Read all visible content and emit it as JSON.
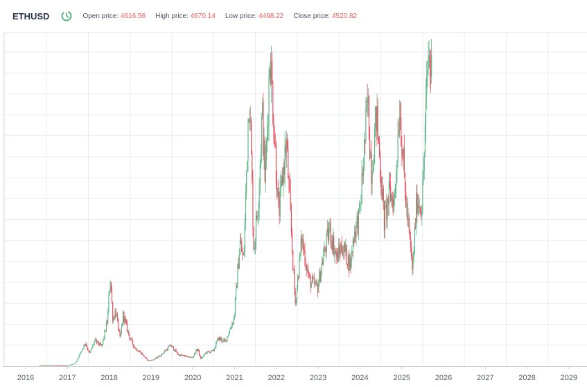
{
  "header": {
    "symbol": "ETHUSD",
    "open_label": "Open price:",
    "open_value": "4616.56",
    "high_label": "High price:",
    "high_value": "4670.14",
    "low_label": "Low price:",
    "low_value": "4498.22",
    "close_label": "Close price:",
    "close_value": "4520.82",
    "clock_icon": "clock-icon"
  },
  "colors": {
    "up": "#5fb88a",
    "down": "#e5505e",
    "grid": "#e8ebf0",
    "clock": "#4cae76",
    "value_text": "#ef5b5b"
  },
  "chart_data": {
    "type": "candlestick",
    "title": "ETHUSD",
    "xlabel": "",
    "ylabel": "",
    "grid": true,
    "y_axis_labels": false,
    "x_ticks": [
      "2016",
      "2017",
      "2018",
      "2019",
      "2020",
      "2021",
      "2022",
      "2023",
      "2024",
      "2025",
      "2026",
      "2027",
      "2028",
      "2029"
    ],
    "xlim": [
      "2016-01-01",
      "2029-12-31"
    ],
    "ylim": [
      0,
      5100
    ],
    "price_path": [
      [
        "2016-05-01",
        11
      ],
      [
        "2016-09-01",
        12
      ],
      [
        "2017-01-01",
        9
      ],
      [
        "2017-03-15",
        45
      ],
      [
        "2017-06-10",
        360
      ],
      [
        "2017-07-15",
        190
      ],
      [
        "2017-09-01",
        390
      ],
      [
        "2017-11-01",
        300
      ],
      [
        "2017-12-20",
        700
      ],
      [
        "2018-01-13",
        1380
      ],
      [
        "2018-02-06",
        700
      ],
      [
        "2018-03-01",
        860
      ],
      [
        "2018-04-10",
        400
      ],
      [
        "2018-05-05",
        790
      ],
      [
        "2018-06-30",
        450
      ],
      [
        "2018-08-15",
        280
      ],
      [
        "2018-10-01",
        220
      ],
      [
        "2018-11-25",
        110
      ],
      [
        "2018-12-15",
        85
      ],
      [
        "2019-02-01",
        105
      ],
      [
        "2019-04-01",
        170
      ],
      [
        "2019-06-25",
        320
      ],
      [
        "2019-09-01",
        175
      ],
      [
        "2019-12-31",
        130
      ],
      [
        "2020-02-15",
        270
      ],
      [
        "2020-03-13",
        110
      ],
      [
        "2020-05-01",
        210
      ],
      [
        "2020-07-01",
        230
      ],
      [
        "2020-08-15",
        430
      ],
      [
        "2020-10-15",
        370
      ],
      [
        "2020-12-31",
        740
      ],
      [
        "2021-02-20",
        1900
      ],
      [
        "2021-03-25",
        1600
      ],
      [
        "2021-05-12",
        4300
      ],
      [
        "2021-06-22",
        1750
      ],
      [
        "2021-08-01",
        2600
      ],
      [
        "2021-09-03",
        3900
      ],
      [
        "2021-09-29",
        2800
      ],
      [
        "2021-11-10",
        4850
      ],
      [
        "2022-01-24",
        2300
      ],
      [
        "2022-04-01",
        3450
      ],
      [
        "2022-06-18",
        950
      ],
      [
        "2022-08-14",
        1950
      ],
      [
        "2022-10-20",
        1300
      ],
      [
        "2022-12-31",
        1200
      ],
      [
        "2023-02-15",
        1650
      ],
      [
        "2023-04-15",
        2100
      ],
      [
        "2023-06-15",
        1650
      ],
      [
        "2023-08-01",
        1850
      ],
      [
        "2023-10-12",
        1550
      ],
      [
        "2023-11-15",
        2050
      ],
      [
        "2024-01-01",
        2300
      ],
      [
        "2024-03-12",
        4050
      ],
      [
        "2024-04-15",
        3000
      ],
      [
        "2024-05-28",
        3850
      ],
      [
        "2024-08-05",
        2200
      ],
      [
        "2024-09-20",
        2650
      ],
      [
        "2024-11-01",
        2500
      ],
      [
        "2024-12-16",
        4050
      ],
      [
        "2025-02-01",
        2700
      ],
      [
        "2025-03-10",
        2000
      ],
      [
        "2025-04-09",
        1450
      ],
      [
        "2025-05-15",
        2550
      ],
      [
        "2025-07-01",
        2450
      ],
      [
        "2025-08-24",
        4800
      ],
      [
        "2025-09-15",
        4520
      ]
    ]
  }
}
